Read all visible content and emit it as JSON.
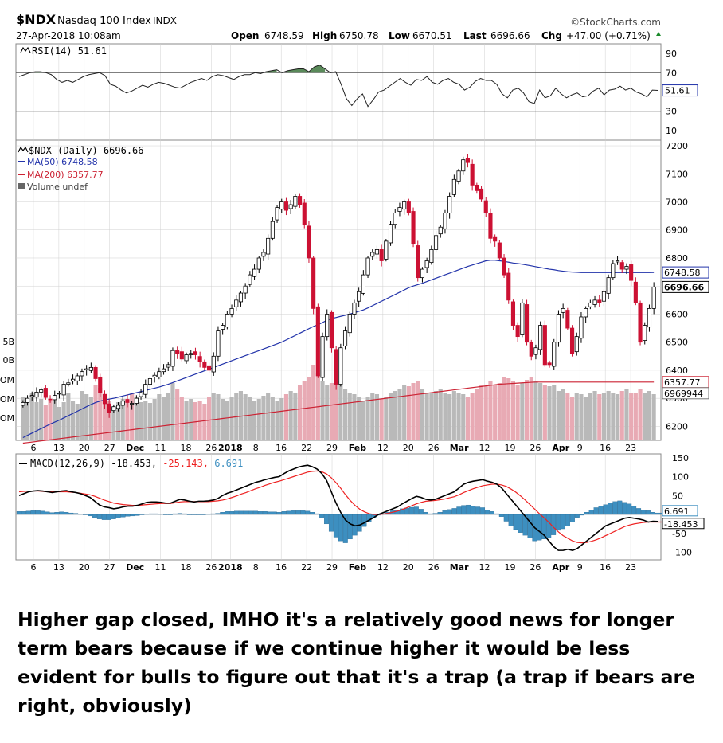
{
  "header": {
    "symbol": "$NDX",
    "name": "Nasdaq 100 Index",
    "exchange": "INDX",
    "source": "©StockCharts.com",
    "datetime": "27-Apr-2018 10:08am",
    "open_label": "Open",
    "open": "6748.59",
    "high_label": "High",
    "high": "6750.78",
    "low_label": "Low",
    "low": "6670.51",
    "last_label": "Last",
    "last": "6696.66",
    "chg_label": "Chg",
    "chg": "+47.00 (+0.71%)"
  },
  "colors": {
    "up": "#000000",
    "down": "#cc1133",
    "ma50": "#2233aa",
    "ma200": "#cc2233",
    "rsi_fill": "#5a8a5a",
    "macd_hist": "#3d8fc0",
    "signal": "#ee2222",
    "vol_up": "#b9b9b9",
    "vol_down": "#e8aab4",
    "grid": "#d0d0d0"
  },
  "caption": "Higher gap closed, IMHO it's a relatively good news for longer term bears because if we continue higher it would be less evident for bulls to figure out that it's a trap (a trap if bears are right, obviously)",
  "chart_data": [
    {
      "type": "line",
      "panel": "rsi",
      "legend": "RSI(14) 51.61",
      "ylim": [
        0,
        100
      ],
      "yticks": [
        90,
        70,
        30,
        10
      ],
      "levels": [
        70,
        50,
        30
      ],
      "last_label": "51.61",
      "values": [
        66,
        68,
        70,
        71,
        71,
        70,
        68,
        63,
        60,
        62,
        60,
        63,
        66,
        68,
        69,
        70,
        67,
        58,
        56,
        52,
        49,
        51,
        54,
        57,
        55,
        58,
        60,
        59,
        57,
        55,
        54,
        57,
        60,
        62,
        64,
        62,
        66,
        68,
        67,
        65,
        63,
        66,
        68,
        68,
        70,
        69,
        71,
        72,
        73,
        70,
        72,
        73,
        74,
        74,
        71,
        76,
        78,
        74,
        70,
        71,
        58,
        43,
        36,
        43,
        48,
        35,
        42,
        50,
        52,
        56,
        60,
        64,
        60,
        57,
        63,
        62,
        66,
        60,
        58,
        62,
        64,
        60,
        58,
        52,
        55,
        61,
        64,
        62,
        62,
        58,
        48,
        44,
        52,
        54,
        49,
        40,
        38,
        52,
        44,
        46,
        54,
        48,
        44,
        47,
        49,
        45,
        46,
        51,
        54,
        47,
        52,
        53,
        56,
        52,
        54,
        50,
        48,
        45,
        52,
        51.61
      ]
    },
    {
      "type": "candlestick",
      "panel": "price",
      "legend": [
        "$NDX (Daily) 6696.66",
        "MA(50) 6748.58",
        "MA(200) 6357.77",
        "Volume undef"
      ],
      "ylim": [
        6150,
        7220
      ],
      "yticks": [
        7200,
        7100,
        7000,
        6900,
        6800,
        6700,
        6600,
        6500,
        6400,
        6300,
        6200
      ],
      "volume_ticks": [
        "5B",
        "0B",
        "OM",
        "OM",
        "OM"
      ],
      "price_labels": [
        "6748.58",
        "6696.66",
        "6357.77",
        "6969944"
      ],
      "close": [
        6285,
        6300,
        6310,
        6322,
        6330,
        6303,
        6295,
        6310,
        6318,
        6350,
        6355,
        6368,
        6380,
        6395,
        6405,
        6410,
        6370,
        6320,
        6280,
        6250,
        6270,
        6275,
        6290,
        6285,
        6282,
        6300,
        6320,
        6350,
        6370,
        6382,
        6395,
        6405,
        6420,
        6470,
        6460,
        6440,
        6455,
        6460,
        6455,
        6430,
        6410,
        6400,
        6450,
        6540,
        6560,
        6600,
        6620,
        6650,
        6675,
        6700,
        6740,
        6760,
        6800,
        6820,
        6870,
        6930,
        6980,
        7000,
        6970,
        6990,
        7020,
        6990,
        6920,
        6800,
        6620,
        6380,
        6520,
        6600,
        6480,
        6350,
        6480,
        6540,
        6600,
        6640,
        6680,
        6740,
        6800,
        6820,
        6830,
        6790,
        6860,
        6920,
        6960,
        6980,
        7000,
        6960,
        6850,
        6730,
        6760,
        6790,
        6830,
        6880,
        6910,
        6960,
        7020,
        7080,
        7110,
        7150,
        7140,
        7060,
        7040,
        7010,
        6960,
        6870,
        6860,
        6800,
        6740,
        6650,
        6560,
        6520,
        6640,
        6500,
        6450,
        6480,
        6560,
        6420,
        6420,
        6500,
        6600,
        6620,
        6550,
        6460,
        6520,
        6590,
        6620,
        6640,
        6650,
        6640,
        6680,
        6730,
        6780,
        6790,
        6760,
        6770,
        6720,
        6640,
        6500,
        6560,
        6620,
        6696.66
      ],
      "ma50": [
        6160,
        6168,
        6176,
        6184,
        6192,
        6200,
        6208,
        6215,
        6222,
        6230,
        6238,
        6246,
        6254,
        6262,
        6270,
        6278,
        6285,
        6290,
        6294,
        6297,
        6300,
        6304,
        6308,
        6312,
        6316,
        6320,
        6324,
        6328,
        6332,
        6336,
        6340,
        6345,
        6350,
        6356,
        6362,
        6368,
        6374,
        6380,
        6386,
        6392,
        6398,
        6404,
        6410,
        6416,
        6422,
        6428,
        6434,
        6440,
        6446,
        6452,
        6458,
        6464,
        6470,
        6476,
        6482,
        6488,
        6494,
        6500,
        6508,
        6516,
        6524,
        6532,
        6540,
        6548,
        6556,
        6562,
        6570,
        6578,
        6584,
        6588,
        6592,
        6596,
        6600,
        6605,
        6610,
        6615,
        6622,
        6630,
        6638,
        6646,
        6654,
        6662,
        6670,
        6678,
        6686,
        6694,
        6700,
        6705,
        6710,
        6716,
        6722,
        6728,
        6734,
        6740,
        6746,
        6752,
        6758,
        6764,
        6770,
        6775,
        6780,
        6785,
        6790,
        6792,
        6792,
        6790,
        6788,
        6785,
        6782,
        6780,
        6778,
        6775,
        6772,
        6769,
        6766,
        6763,
        6760,
        6758,
        6755,
        6753,
        6751,
        6750,
        6749,
        6748,
        6748,
        6748,
        6748,
        6748,
        6748,
        6748,
        6748,
        6748,
        6748,
        6748,
        6748,
        6748,
        6748,
        6748,
        6748,
        6748.58
      ],
      "ma200": [
        6140,
        6142,
        6144,
        6146,
        6148,
        6150,
        6152,
        6154,
        6156,
        6158,
        6160,
        6162,
        6164,
        6166,
        6168,
        6170,
        6172,
        6174,
        6176,
        6178,
        6180,
        6182,
        6184,
        6186,
        6188,
        6190,
        6192,
        6194,
        6196,
        6198,
        6200,
        6202,
        6204,
        6206,
        6208,
        6210,
        6212,
        6214,
        6216,
        6218,
        6220,
        6222,
        6224,
        6226,
        6228,
        6230,
        6232,
        6234,
        6236,
        6238,
        6240,
        6242,
        6244,
        6246,
        6248,
        6250,
        6252,
        6254,
        6256,
        6258,
        6260,
        6262,
        6264,
        6266,
        6268,
        6270,
        6272,
        6274,
        6276,
        6278,
        6280,
        6282,
        6284,
        6286,
        6288,
        6290,
        6292,
        6294,
        6296,
        6298,
        6300,
        6302,
        6304,
        6306,
        6308,
        6310,
        6312,
        6314,
        6316,
        6318,
        6320,
        6322,
        6324,
        6326,
        6328,
        6330,
        6332,
        6334,
        6336,
        6338,
        6340,
        6342,
        6344,
        6346,
        6348,
        6350,
        6351,
        6352,
        6353,
        6354,
        6355,
        6356,
        6357,
        6357.77,
        6357.77,
        6357.77,
        6357.77,
        6357.77,
        6357.77,
        6357.77,
        6357.77,
        6357.77,
        6357.77,
        6357.77,
        6357.77,
        6357.77,
        6357.77,
        6357.77,
        6357.77,
        6357.77,
        6357.77,
        6357.77,
        6357.77,
        6357.77,
        6357.77,
        6357.77,
        6357.77,
        6357.77,
        6357.77,
        6357.77
      ],
      "volume": [
        0.55,
        0.5,
        0.6,
        0.48,
        0.52,
        0.45,
        0.5,
        0.56,
        0.42,
        0.48,
        0.6,
        0.5,
        0.46,
        0.62,
        0.58,
        0.55,
        0.7,
        0.66,
        0.45,
        0.5,
        0.42,
        0.48,
        0.52,
        0.5,
        0.6,
        0.55,
        0.48,
        0.5,
        0.47,
        0.52,
        0.58,
        0.55,
        0.6,
        0.72,
        0.65,
        0.55,
        0.5,
        0.52,
        0.48,
        0.5,
        0.46,
        0.55,
        0.6,
        0.58,
        0.52,
        0.5,
        0.55,
        0.6,
        0.62,
        0.58,
        0.55,
        0.5,
        0.52,
        0.56,
        0.6,
        0.55,
        0.5,
        0.53,
        0.58,
        0.62,
        0.6,
        0.7,
        0.75,
        0.8,
        0.95,
        0.85,
        0.75,
        0.7,
        0.72,
        0.8,
        0.75,
        0.65,
        0.6,
        0.58,
        0.55,
        0.5,
        0.55,
        0.6,
        0.58,
        0.52,
        0.55,
        0.6,
        0.62,
        0.65,
        0.7,
        0.68,
        0.72,
        0.75,
        0.65,
        0.6,
        0.6,
        0.62,
        0.64,
        0.6,
        0.58,
        0.62,
        0.6,
        0.58,
        0.55,
        0.6,
        0.65,
        0.7,
        0.68,
        0.75,
        0.7,
        0.72,
        0.8,
        0.78,
        0.75,
        0.7,
        0.72,
        0.76,
        0.8,
        0.75,
        0.72,
        0.7,
        0.68,
        0.7,
        0.62,
        0.65,
        0.6,
        0.55,
        0.6,
        0.58,
        0.55,
        0.6,
        0.62,
        0.58,
        0.6,
        0.62,
        0.6,
        0.58,
        0.62,
        0.64,
        0.6,
        0.6,
        0.65,
        0.6,
        0.62,
        0.58
      ]
    },
    {
      "type": "macd",
      "panel": "macd",
      "legend": [
        "MACD(12,26,9)",
        "-18.453",
        "-25.143",
        "6.691"
      ],
      "ylim": [
        -120,
        160
      ],
      "yticks": [
        150,
        100,
        50,
        -50,
        -100
      ],
      "price_labels": [
        "6.691",
        "-18.453"
      ],
      "macd": [
        50,
        55,
        60,
        62,
        63,
        62,
        60,
        58,
        60,
        62,
        63,
        60,
        58,
        55,
        50,
        45,
        35,
        25,
        20,
        18,
        15,
        17,
        20,
        22,
        22,
        24,
        28,
        32,
        33,
        33,
        32,
        30,
        30,
        35,
        40,
        38,
        35,
        33,
        35,
        35,
        36,
        38,
        42,
        50,
        56,
        60,
        65,
        70,
        75,
        80,
        85,
        88,
        92,
        95,
        98,
        100,
        108,
        115,
        120,
        125,
        128,
        130,
        126,
        120,
        108,
        90,
        60,
        30,
        5,
        -15,
        -25,
        -30,
        -28,
        -22,
        -15,
        -8,
        0,
        5,
        10,
        15,
        20,
        28,
        35,
        42,
        48,
        45,
        40,
        38,
        40,
        45,
        50,
        55,
        60,
        70,
        80,
        85,
        88,
        90,
        92,
        88,
        85,
        80,
        70,
        55,
        40,
        25,
        10,
        -5,
        -20,
        -35,
        -45,
        -55,
        -70,
        -85,
        -95,
        -95,
        -92,
        -95,
        -90,
        -80,
        -70,
        -60,
        -50,
        -40,
        -30,
        -25,
        -20,
        -15,
        -10,
        -8,
        -10,
        -12,
        -15,
        -20,
        -18,
        -18.453
      ],
      "signal": [
        60,
        61,
        62,
        62,
        62,
        61,
        60,
        60,
        60,
        60,
        60,
        59,
        58,
        56,
        54,
        52,
        48,
        43,
        38,
        34,
        30,
        28,
        26,
        25,
        24,
        24,
        25,
        26,
        27,
        28,
        29,
        29,
        29,
        31,
        33,
        34,
        34,
        34,
        34,
        34,
        34,
        35,
        36,
        38,
        41,
        45,
        49,
        54,
        58,
        63,
        68,
        72,
        77,
        81,
        85,
        88,
        92,
        96,
        100,
        104,
        108,
        112,
        114,
        115,
        113,
        107,
        97,
        84,
        69,
        52,
        37,
        24,
        14,
        7,
        2,
        0,
        0,
        1,
        3,
        6,
        9,
        13,
        18,
        23,
        28,
        32,
        35,
        36,
        37,
        39,
        41,
        44,
        47,
        52,
        58,
        63,
        68,
        72,
        76,
        78,
        80,
        80,
        78,
        74,
        67,
        59,
        49,
        38,
        26,
        14,
        2,
        -9,
        -21,
        -34,
        -46,
        -56,
        -63,
        -70,
        -74,
        -75,
        -74,
        -71,
        -67,
        -62,
        -56,
        -50,
        -44,
        -38,
        -32,
        -28,
        -25,
        -23,
        -21,
        -20,
        -20,
        -20,
        -20,
        -21,
        -21,
        -25.143
      ],
      "histogram": [
        8,
        8,
        9,
        10,
        10,
        9,
        7,
        5,
        6,
        7,
        6,
        4,
        3,
        1,
        -1,
        -4,
        -8,
        -12,
        -14,
        -14,
        -12,
        -10,
        -7,
        -5,
        -4,
        -3,
        -1,
        1,
        2,
        2,
        1,
        0,
        0,
        2,
        3,
        2,
        0,
        -1,
        0,
        0,
        1,
        2,
        3,
        6,
        8,
        8,
        9,
        9,
        9,
        9,
        9,
        8,
        8,
        7,
        7,
        6,
        8,
        9,
        10,
        10,
        10,
        9,
        6,
        2,
        -8,
        -25,
        -45,
        -60,
        -70,
        -75,
        -65,
        -55,
        -45,
        -32,
        -20,
        -10,
        -2,
        2,
        6,
        10,
        12,
        15,
        17,
        19,
        20,
        14,
        6,
        2,
        3,
        6,
        10,
        13,
        16,
        20,
        24,
        25,
        22,
        20,
        18,
        12,
        8,
        2,
        -6,
        -18,
        -30,
        -40,
        -48,
        -55,
        -62,
        -70,
        -68,
        -65,
        -62,
        -54,
        -42,
        -38,
        -30,
        -20,
        -8,
        -2,
        6,
        12,
        18,
        22,
        26,
        30,
        34,
        36,
        32,
        28,
        22,
        16,
        12,
        10,
        6,
        4,
        4,
        3,
        6.691
      ],
      "x_labels": [
        "6",
        "13",
        "20",
        "27",
        "Dec",
        "11",
        "18",
        "26",
        "2018",
        "8",
        "16",
        "22",
        "29",
        "Feb",
        "12",
        "20",
        "26",
        "Mar",
        "12",
        "19",
        "26",
        "Apr",
        "9",
        "16",
        "23"
      ]
    }
  ]
}
